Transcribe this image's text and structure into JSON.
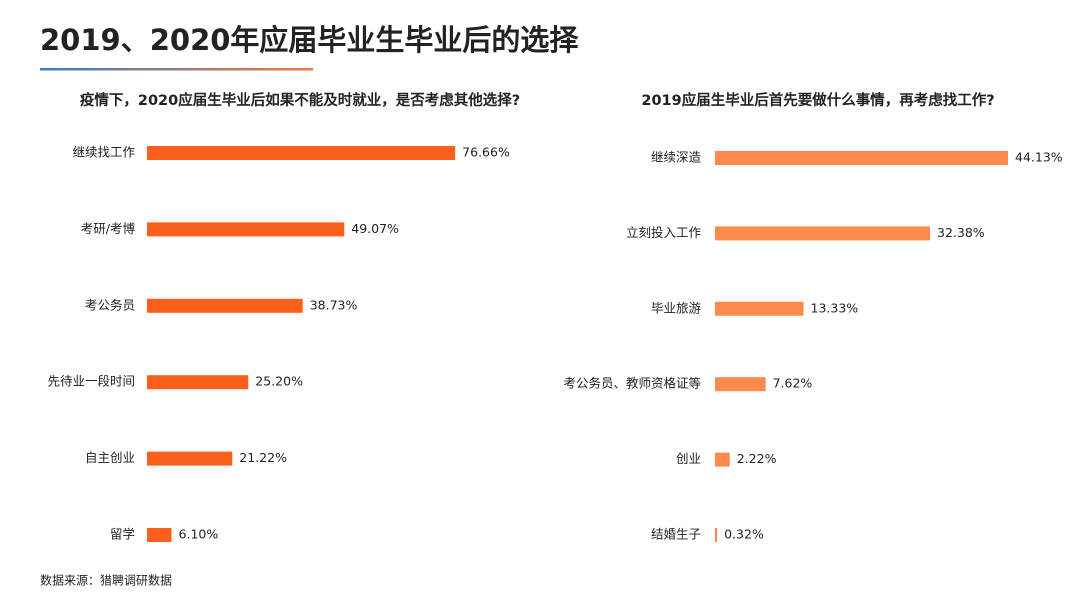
{
  "title": "2019、2020年应届毕业生毕业后的选择",
  "source": "数据来源：猎聘调研数据",
  "chart_data": [
    {
      "type": "bar",
      "orientation": "horizontal",
      "title": "疫情下，2020应届生毕业后如果不能及时就业，是否考虑其他选择?",
      "categories": [
        "继续找工作",
        "考研/考博",
        "考公务员",
        "先待业一段时间",
        "自主创业",
        "留学"
      ],
      "values": [
        76.66,
        49.07,
        38.73,
        25.2,
        21.22,
        6.1
      ],
      "value_labels": [
        "76.66%",
        "49.07%",
        "38.73%",
        "25.20%",
        "21.22%",
        "6.10%"
      ],
      "color": "#fa5f1e"
    },
    {
      "type": "bar",
      "orientation": "horizontal",
      "title": "2019应届生毕业后首先要做什么事情，再考虑找工作?",
      "categories": [
        "继续深造",
        "立刻投入工作",
        "毕业旅游",
        "考公务员、教师资格证等",
        "创业",
        "结婚生子"
      ],
      "values": [
        44.13,
        32.38,
        13.33,
        7.62,
        2.22,
        0.32
      ],
      "value_labels": [
        "44.13%",
        "32.38%",
        "13.33%",
        "7.62%",
        "2.22%",
        "0.32%"
      ],
      "color": "#fb8a4c"
    }
  ]
}
